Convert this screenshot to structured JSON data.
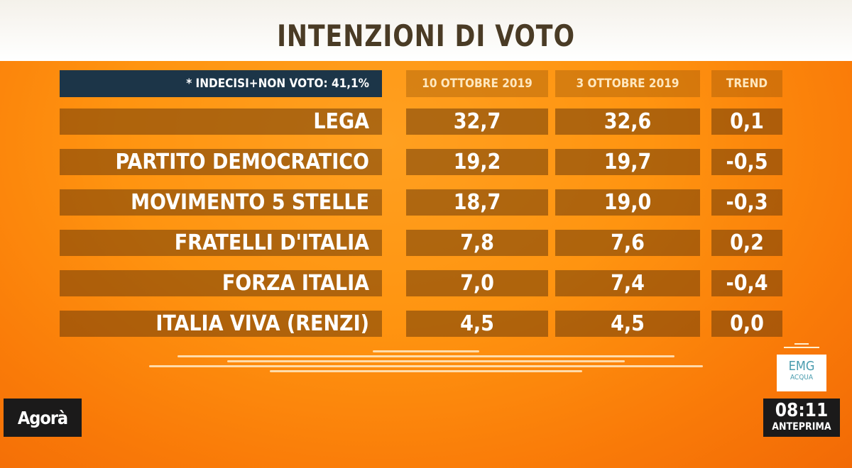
{
  "title": "INTENZIONI DI VOTO",
  "chart_data": {
    "type": "table",
    "note": "* INDECISI+NON VOTO: 41,1%",
    "columns": [
      "10 OTTOBRE 2019",
      "3 OTTOBRE 2019",
      "TREND"
    ],
    "rows": [
      {
        "party": "LEGA",
        "v1": "32,7",
        "v2": "32,6",
        "trend": "0,1"
      },
      {
        "party": "PARTITO DEMOCRATICO",
        "v1": "19,2",
        "v2": "19,7",
        "trend": "-0,5"
      },
      {
        "party": "MOVIMENTO 5 STELLE",
        "v1": "18,7",
        "v2": "19,0",
        "trend": "-0,3"
      },
      {
        "party": "FRATELLI D'ITALIA",
        "v1": "7,8",
        "v2": "7,6",
        "trend": "0,2"
      },
      {
        "party": "FORZA ITALIA",
        "v1": "7,0",
        "v2": "7,4",
        "trend": "-0,4"
      },
      {
        "party": "ITALIA VIVA (RENZI)",
        "v1": "4,5",
        "v2": "4,5",
        "trend": "0,0"
      }
    ]
  },
  "logo": "Agorà",
  "source_logo": {
    "line1": "EMG",
    "line2": "ACQUA"
  },
  "clock": {
    "time": "08:11",
    "label": "ANTEPRIMA"
  }
}
